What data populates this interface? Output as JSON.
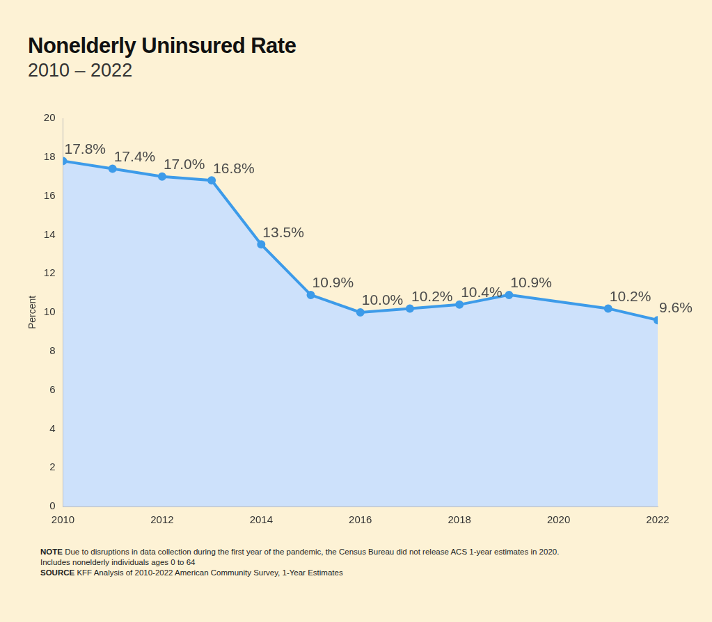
{
  "chart_data": {
    "type": "line",
    "title": "Nonelderly Uninsured Rate",
    "subtitle": "2010 – 2022",
    "y_label": "Percent",
    "x": [
      2010,
      2011,
      2012,
      2013,
      2014,
      2015,
      2016,
      2017,
      2018,
      2019,
      2021,
      2022
    ],
    "values": [
      17.8,
      17.4,
      17.0,
      16.8,
      13.5,
      10.9,
      10.0,
      10.2,
      10.4,
      10.9,
      10.2,
      9.6
    ],
    "value_labels": [
      "17.8%",
      "17.4%",
      "17.0%",
      "16.8%",
      "13.5%",
      "10.9%",
      "10.0%",
      "10.2%",
      "10.4%",
      "10.9%",
      "10.2%",
      "9.6%"
    ],
    "color": "#3d9be9",
    "fill_color": "#cde1fb",
    "marker": "circle",
    "xlim": [
      2010,
      2022
    ],
    "xticks": [
      2010,
      2012,
      2014,
      2016,
      2018,
      2020,
      2022
    ],
    "ylim": [
      0,
      20
    ],
    "yticks": [
      0,
      2,
      4,
      6,
      8,
      10,
      12,
      14,
      16,
      18,
      20
    ],
    "grid": false,
    "data_labels": true,
    "note_label": "NOTE",
    "note": "Due to disruptions in data collection during the first year of the pandemic, the Census Bureau did not release ACS 1-year estimates in 2020.",
    "note2": "Includes nonelderly individuals ages 0 to 64",
    "source_label": "SOURCE",
    "source": "KFF Analysis of 2010-2022 American Community Survey, 1-Year Estimates"
  }
}
